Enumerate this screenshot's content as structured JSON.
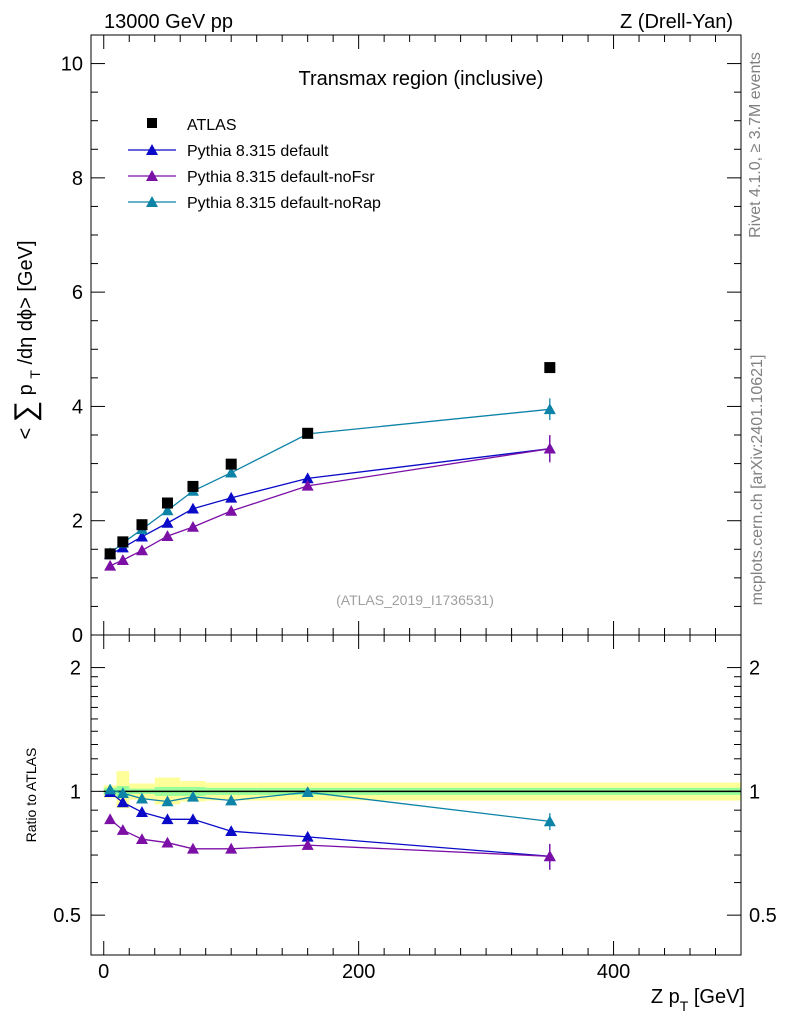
{
  "header": {
    "left": "13000 GeV pp",
    "right": "Z (Drell-Yan)"
  },
  "side_labels": {
    "rivet": "Rivet 4.1.0, ≥ 3.7M events",
    "mcplots": "mcplots.cern.ch [arXiv:2401.10621]"
  },
  "colors": {
    "atlas": "#000000",
    "default": "#0a0ac8",
    "noFsr": "#7b0fa6",
    "noRap": "#0d83a8",
    "band_outer": "#ffff99",
    "band_inner": "#99ff99"
  },
  "chart_data": [
    {
      "type": "line",
      "panel": "main",
      "title": "Transmax region (inclusive)",
      "watermark": "(ATLAS_2019_I1736531)",
      "ylabel": "< ∑ p_T /dη dϕ> [GeV]",
      "ylabel_parts": {
        "open": "<",
        "sum": "∑",
        "p": "p",
        "sub": "T",
        "rest": " /dη dϕ> [GeV]"
      },
      "xlim": [
        -10,
        500
      ],
      "ylim": [
        0,
        10.5
      ],
      "yticks": [
        0,
        2,
        4,
        6,
        8,
        10
      ],
      "ytick_labels": [
        "0",
        "2",
        "4",
        "6",
        "8",
        "10"
      ],
      "x": [
        5,
        15,
        30,
        50,
        70,
        100,
        160,
        350
      ],
      "legend_position": "top-left",
      "series": [
        {
          "name": "ATLAS",
          "marker": "square",
          "values": [
            1.42,
            1.63,
            1.93,
            2.31,
            2.6,
            2.99,
            3.53,
            4.68
          ]
        },
        {
          "name": "Pythia 8.315 default",
          "marker": "triangle",
          "values": [
            1.41,
            1.53,
            1.72,
            1.96,
            2.21,
            2.4,
            2.74,
            3.26
          ],
          "errors": [
            0.03,
            0.03,
            0.03,
            0.04,
            0.04,
            0.05,
            0.08,
            0.22
          ]
        },
        {
          "name": "Pythia 8.315 default-noFsr",
          "marker": "triangle",
          "values": [
            1.21,
            1.31,
            1.48,
            1.73,
            1.89,
            2.17,
            2.61,
            3.26
          ],
          "errors": [
            0.03,
            0.03,
            0.03,
            0.04,
            0.04,
            0.05,
            0.08,
            0.24
          ]
        },
        {
          "name": "Pythia 8.315 default-noRap",
          "marker": "triangle",
          "values": [
            1.43,
            1.61,
            1.85,
            2.18,
            2.52,
            2.84,
            3.52,
            3.95
          ],
          "errors": [
            0.03,
            0.03,
            0.03,
            0.04,
            0.04,
            0.05,
            0.07,
            0.19
          ]
        }
      ]
    },
    {
      "type": "line",
      "panel": "ratio",
      "ylabel": "Ratio to ATLAS",
      "xlabel": "Z p_T [GeV]",
      "xlabel_parts": {
        "main": "Z p",
        "sub": "T",
        "rest": " [GeV]"
      },
      "xlim": [
        -10,
        500
      ],
      "xticks": [
        0,
        200,
        400
      ],
      "xtick_labels": [
        "0",
        "200",
        "400"
      ],
      "ylim": [
        0.4,
        2.4
      ],
      "yscale": "log",
      "yticks": [
        0.5,
        1,
        2
      ],
      "ytick_labels": [
        "0.5",
        "1",
        "2"
      ],
      "x": [
        5,
        15,
        30,
        50,
        70,
        100,
        160,
        350
      ],
      "band_outer": [
        {
          "x0": 0,
          "x1": 10,
          "lo": 0.965,
          "hi": 1.035
        },
        {
          "x0": 10,
          "x1": 20,
          "lo": 0.91,
          "hi": 1.12
        },
        {
          "x0": 20,
          "x1": 40,
          "lo": 0.955,
          "hi": 1.045
        },
        {
          "x0": 40,
          "x1": 60,
          "lo": 0.93,
          "hi": 1.08
        },
        {
          "x0": 60,
          "x1": 80,
          "lo": 0.945,
          "hi": 1.06
        },
        {
          "x0": 80,
          "x1": 120,
          "lo": 0.95,
          "hi": 1.05
        },
        {
          "x0": 120,
          "x1": 200,
          "lo": 0.95,
          "hi": 1.05
        },
        {
          "x0": 200,
          "x1": 500,
          "lo": 0.95,
          "hi": 1.05
        }
      ],
      "band_inner": [
        {
          "x0": 0,
          "x1": 10,
          "lo": 0.985,
          "hi": 1.02
        },
        {
          "x0": 10,
          "x1": 20,
          "lo": 0.97,
          "hi": 1.03
        },
        {
          "x0": 20,
          "x1": 40,
          "lo": 0.985,
          "hi": 1.015
        },
        {
          "x0": 40,
          "x1": 60,
          "lo": 0.975,
          "hi": 1.025
        },
        {
          "x0": 60,
          "x1": 80,
          "lo": 0.975,
          "hi": 1.025
        },
        {
          "x0": 80,
          "x1": 120,
          "lo": 0.98,
          "hi": 1.02
        },
        {
          "x0": 120,
          "x1": 200,
          "lo": 0.98,
          "hi": 1.02
        },
        {
          "x0": 200,
          "x1": 500,
          "lo": 0.98,
          "hi": 1.02
        }
      ],
      "series": [
        {
          "name": "Pythia 8.315 default",
          "values": [
            0.995,
            0.94,
            0.89,
            0.855,
            0.855,
            0.8,
            0.775,
            0.695
          ],
          "errors": [
            0.01,
            0.01,
            0.01,
            0.01,
            0.01,
            0.01,
            0.02,
            0.05
          ]
        },
        {
          "name": "Pythia 8.315 default-noFsr",
          "values": [
            0.855,
            0.805,
            0.765,
            0.75,
            0.725,
            0.725,
            0.74,
            0.695
          ],
          "errors": [
            0.01,
            0.01,
            0.01,
            0.01,
            0.01,
            0.01,
            0.02,
            0.05
          ]
        },
        {
          "name": "Pythia 8.315 default-noRap",
          "values": [
            1.01,
            0.99,
            0.96,
            0.945,
            0.97,
            0.95,
            0.995,
            0.845
          ],
          "errors": [
            0.01,
            0.01,
            0.01,
            0.01,
            0.01,
            0.01,
            0.02,
            0.04
          ]
        }
      ]
    }
  ]
}
